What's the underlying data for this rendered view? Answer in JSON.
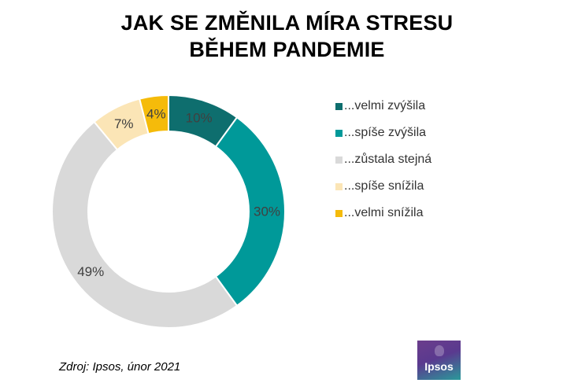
{
  "title": {
    "line1": "JAK SE ZMĚNILA MÍRA STRESU",
    "line2": "BĚHEM PANDEMIE"
  },
  "chart_data": {
    "type": "pie",
    "variant": "donut",
    "categories": [
      "...velmi zvýšila",
      "...spíše zvýšila",
      "...zůstala stejná",
      "...spíše snížila",
      "...velmi snížila"
    ],
    "values": [
      10,
      30,
      49,
      7,
      4
    ],
    "labels": [
      "10%",
      "30%",
      "49%",
      "7%",
      "4%"
    ],
    "colors": [
      "#0e6e6e",
      "#009999",
      "#d9d9d9",
      "#fbe5b6",
      "#f5bb0a"
    ],
    "legend_position": "right"
  },
  "source": "Zdroj: Ipsos, únor 2021",
  "logo": {
    "text": "Ipsos",
    "colors": [
      "#6b3d8c",
      "#2a9a9a"
    ]
  }
}
